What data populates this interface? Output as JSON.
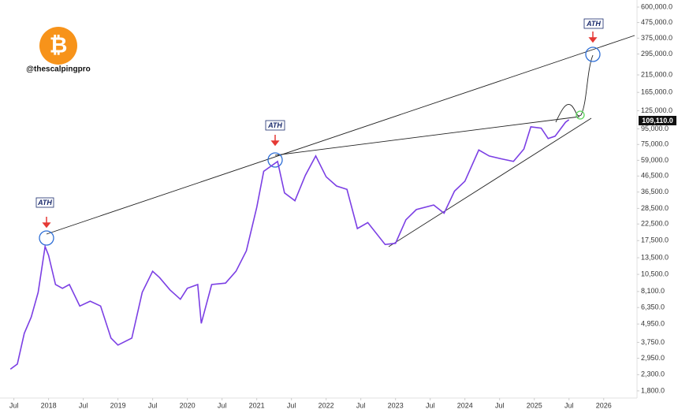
{
  "chart_data": {
    "type": "line",
    "handle": "@thescalpingpro",
    "logo_symbol": "₿",
    "annotations": [
      "ATH",
      "ATH",
      "ATH"
    ],
    "last_price_label": "109,110.0",
    "color": "#7b3fe4",
    "log_scale": true,
    "grid": false,
    "x": [
      2017.45,
      2017.55,
      2017.65,
      2017.75,
      2017.85,
      2017.95,
      2018.0,
      2018.1,
      2018.2,
      2018.3,
      2018.45,
      2018.6,
      2018.75,
      2018.9,
      2019.0,
      2019.2,
      2019.35,
      2019.5,
      2019.6,
      2019.75,
      2019.9,
      2020.0,
      2020.15,
      2020.2,
      2020.35,
      2020.55,
      2020.7,
      2020.85,
      2021.0,
      2021.1,
      2021.3,
      2021.4,
      2021.55,
      2021.7,
      2021.85,
      2022.0,
      2022.15,
      2022.3,
      2022.45,
      2022.6,
      2022.85,
      2023.0,
      2023.15,
      2023.3,
      2023.55,
      2023.7,
      2023.85,
      2024.0,
      2024.2,
      2024.35,
      2024.55,
      2024.7,
      2024.85,
      2024.95,
      2025.1,
      2025.2,
      2025.3,
      2025.45,
      2025.5
    ],
    "values": [
      2500,
      2700,
      4300,
      5500,
      8000,
      16000,
      14000,
      9000,
      8500,
      9000,
      6500,
      7000,
      6500,
      4000,
      3600,
      4000,
      8000,
      11000,
      10000,
      8300,
      7200,
      8500,
      9000,
      5000,
      9000,
      9200,
      11000,
      15000,
      29000,
      50000,
      58000,
      36000,
      32000,
      47000,
      63000,
      46000,
      40000,
      38000,
      21000,
      23000,
      16500,
      16800,
      24000,
      28000,
      30000,
      26500,
      37000,
      43000,
      69000,
      63000,
      60000,
      58000,
      70000,
      98000,
      96000,
      82000,
      85000,
      105000,
      109110
    ],
    "xlim": [
      2017.3,
      2026.48
    ],
    "xticks": [
      {
        "value": 2017.5,
        "label": "Jul"
      },
      2018,
      {
        "value": 2018.5,
        "label": "Jul"
      },
      2019,
      {
        "value": 2019.5,
        "label": "Jul"
      },
      2020,
      {
        "value": 2020.5,
        "label": "Jul"
      },
      2021,
      {
        "value": 2021.5,
        "label": "Jul"
      },
      2022,
      {
        "value": 2022.5,
        "label": "Jul"
      },
      2023,
      {
        "value": 2023.5,
        "label": "Jul"
      },
      2024,
      {
        "value": 2024.5,
        "label": "Jul"
      },
      2025,
      {
        "value": 2025.5,
        "label": "Jul"
      },
      2026
    ],
    "ylim": [
      1615,
      668000
    ],
    "yticks": [
      {
        "value": 600000,
        "label": "600,000.0"
      },
      {
        "value": 475000,
        "label": "475,000.0"
      },
      {
        "value": 375000,
        "label": "375,000.0"
      },
      {
        "value": 295000,
        "label": "295,000.0"
      },
      {
        "value": 215000,
        "label": "215,000.0"
      },
      {
        "value": 165000,
        "label": "165,000.0"
      },
      {
        "value": 125000,
        "label": "125,000.0"
      },
      {
        "value": 95000,
        "label": "95,000.0"
      },
      {
        "value": 75000,
        "label": "75,000.0"
      },
      {
        "value": 59000,
        "label": "59,000.0"
      },
      {
        "value": 46500,
        "label": "46,500.0"
      },
      {
        "value": 36500,
        "label": "36,500.0"
      },
      {
        "value": 28500,
        "label": "28,500.0"
      },
      {
        "value": 22500,
        "label": "22,500.0"
      },
      {
        "value": 17500,
        "label": "17,500.0"
      },
      {
        "value": 13500,
        "label": "13,500.0"
      },
      {
        "value": 10500,
        "label": "10,500.0"
      },
      {
        "value": 8100,
        "label": "8,100.0"
      },
      {
        "value": 6350,
        "label": "6,350.0"
      },
      {
        "value": 4950,
        "label": "4,950.0"
      },
      {
        "value": 3750,
        "label": "3,750.0"
      },
      {
        "value": 2950,
        "label": "2,950.0"
      },
      {
        "value": 2300,
        "label": "2,300.0"
      },
      {
        "value": 1800,
        "label": "1,800.0"
      }
    ]
  }
}
